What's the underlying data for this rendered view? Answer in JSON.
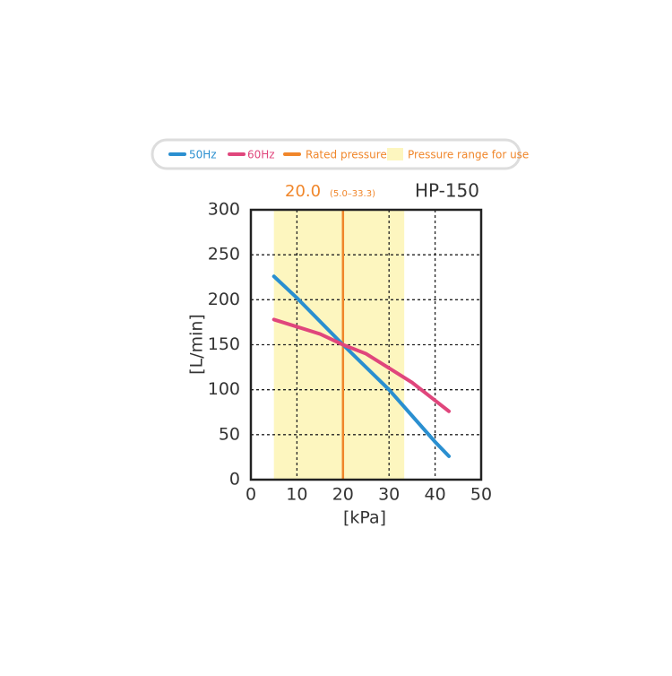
{
  "chart_data": {
    "type": "line",
    "title": "HP-150",
    "xlabel": "[kPa]",
    "ylabel": "[L/min]",
    "xlim": [
      0,
      50
    ],
    "xticks": [
      0,
      10,
      20,
      30,
      40,
      50
    ],
    "ylim": [
      0,
      300
    ],
    "yticks": [
      0,
      50,
      100,
      150,
      200,
      250,
      300
    ],
    "grid": true,
    "series": [
      {
        "name": "50Hz",
        "color": "#2a8fd0",
        "x": [
          5,
          10,
          20,
          30,
          40,
          43
        ],
        "values": [
          226,
          202,
          150,
          100,
          42,
          26
        ]
      },
      {
        "name": "60Hz",
        "color": "#e0467c",
        "x": [
          5,
          10,
          15,
          20,
          25,
          30,
          35,
          40,
          43
        ],
        "values": [
          178,
          170,
          162,
          150,
          140,
          124,
          108,
          88,
          76
        ]
      }
    ],
    "rated_pressure": {
      "name": "Rated pressure",
      "color": "#f0862a",
      "value": 20,
      "label": "20.0"
    },
    "range": {
      "name": "Pressure range for use",
      "color": "#fdf6bf",
      "text_color": "#f0862a",
      "values": [
        5.0,
        33.3
      ],
      "label": "(5.0–33.3)"
    }
  }
}
